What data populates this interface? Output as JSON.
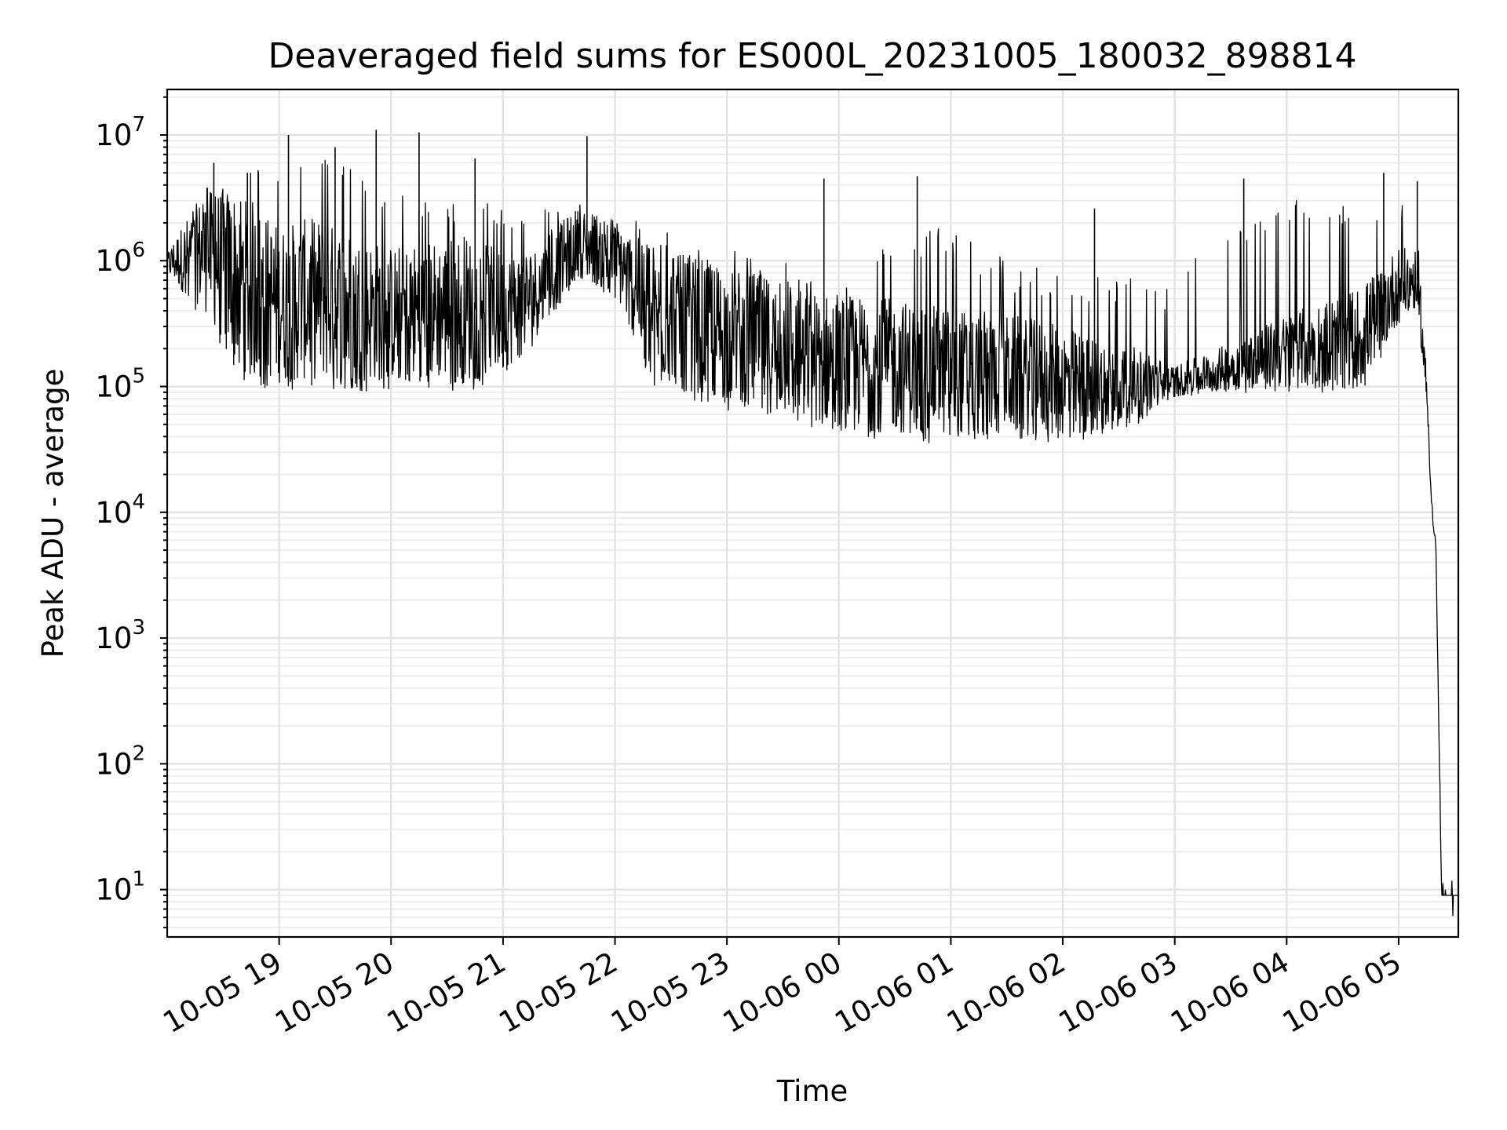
{
  "chart_data": {
    "type": "line",
    "title": "Deaveraged field sums for ES000L_20231005_180032_898814",
    "xlabel": "Time",
    "ylabel": "Peak ADU - average",
    "yscale": "log",
    "ylim": [
      4.2,
      23000000
    ],
    "xlim": [
      "10-05 18:00",
      "10-06 05:32"
    ],
    "grid": true,
    "line_color": "#000000",
    "x_ticks": [
      "10-05 19",
      "10-05 20",
      "10-05 21",
      "10-05 22",
      "10-05 23",
      "10-06 00",
      "10-06 01",
      "10-06 02",
      "10-06 03",
      "10-06 04",
      "10-06 05"
    ],
    "y_ticks": [
      {
        "base": "10",
        "exp": "1",
        "value": 10
      },
      {
        "base": "10",
        "exp": "2",
        "value": 100
      },
      {
        "base": "10",
        "exp": "3",
        "value": 1000
      },
      {
        "base": "10",
        "exp": "4",
        "value": 10000
      },
      {
        "base": "10",
        "exp": "5",
        "value": 100000
      },
      {
        "base": "10",
        "exp": "6",
        "value": 1000000
      },
      {
        "base": "10",
        "exp": "7",
        "value": 10000000
      }
    ],
    "series": [
      {
        "x": [
          "10-05 18:00",
          "10-05 18:20",
          "10-05 18:40",
          "10-05 19:00",
          "10-05 19:20",
          "10-05 19:40",
          "10-05 20:00",
          "10-05 20:20",
          "10-05 20:40",
          "10-05 21:00",
          "10-05 21:20",
          "10-05 21:40",
          "10-05 22:00",
          "10-05 22:20",
          "10-05 22:40",
          "10-05 23:00",
          "10-05 23:20",
          "10-05 23:40",
          "10-06 00:00",
          "10-06 00:20",
          "10-06 00:40",
          "10-06 01:00",
          "10-06 01:20",
          "10-06 01:40",
          "10-06 02:00",
          "10-06 02:20",
          "10-06 02:40",
          "10-06 03:00",
          "10-06 03:20",
          "10-06 03:40",
          "10-06 04:00",
          "10-06 04:20",
          "10-06 04:40",
          "10-06 05:00",
          "10-06 05:10",
          "10-06 05:15",
          "10-06 05:18",
          "10-06 05:20",
          "10-06 05:23",
          "10-06 05:32"
        ],
        "y": [
          950000,
          1200000,
          700000,
          450000,
          500000,
          420000,
          380000,
          400000,
          420000,
          380000,
          600000,
          1400000,
          1100000,
          350000,
          320000,
          260000,
          220000,
          180000,
          160000,
          150000,
          140000,
          130000,
          125000,
          120000,
          110000,
          100000,
          105000,
          110000,
          130000,
          160000,
          190000,
          220000,
          250000,
          650000,
          700000,
          100000,
          10000,
          5000,
          9,
          9
        ],
        "low": [
          750000,
          300000,
          110000,
          90000,
          95000,
          90000,
          95000,
          95000,
          90000,
          110000,
          250000,
          650000,
          500000,
          100000,
          80000,
          65000,
          55000,
          48000,
          42000,
          38000,
          36000,
          35000,
          35000,
          36000,
          36000,
          38000,
          50000,
          80000,
          85000,
          90000,
          90000,
          90000,
          90000,
          300000,
          400000,
          70000,
          8000,
          4500,
          9,
          9
        ],
        "high": [
          1300000,
          4000000,
          5000000,
          7000000,
          9000000,
          7000000,
          3500000,
          3000000,
          3000000,
          2800000,
          2500000,
          2800000,
          2500000,
          2000000,
          1500000,
          1300000,
          1000000,
          1000000,
          900000,
          1500000,
          1800000,
          2000000,
          1200000,
          900000,
          900000,
          800000,
          700000,
          600000,
          1800000,
          2500000,
          3000000,
          3500000,
          3500000,
          3500000,
          2500000,
          200000,
          12000,
          6000,
          9,
          9
        ],
        "spikes": [
          {
            "x": "10-05 18:25",
            "y": 6000000
          },
          {
            "x": "10-05 18:43",
            "y": 5000000
          },
          {
            "x": "10-05 19:05",
            "y": 10000000
          },
          {
            "x": "10-05 19:30",
            "y": 8000000
          },
          {
            "x": "10-05 19:52",
            "y": 11000000
          },
          {
            "x": "10-05 20:15",
            "y": 10500000
          },
          {
            "x": "10-05 20:45",
            "y": 6500000
          },
          {
            "x": "10-05 21:45",
            "y": 9800000
          },
          {
            "x": "10-05 23:52",
            "y": 4500000
          },
          {
            "x": "10-06 00:42",
            "y": 4700000
          },
          {
            "x": "10-06 02:17",
            "y": 2600000
          },
          {
            "x": "10-06 03:37",
            "y": 4500000
          },
          {
            "x": "10-06 04:52",
            "y": 5000000
          },
          {
            "x": "10-06 05:10",
            "y": 4300000
          }
        ]
      }
    ]
  }
}
